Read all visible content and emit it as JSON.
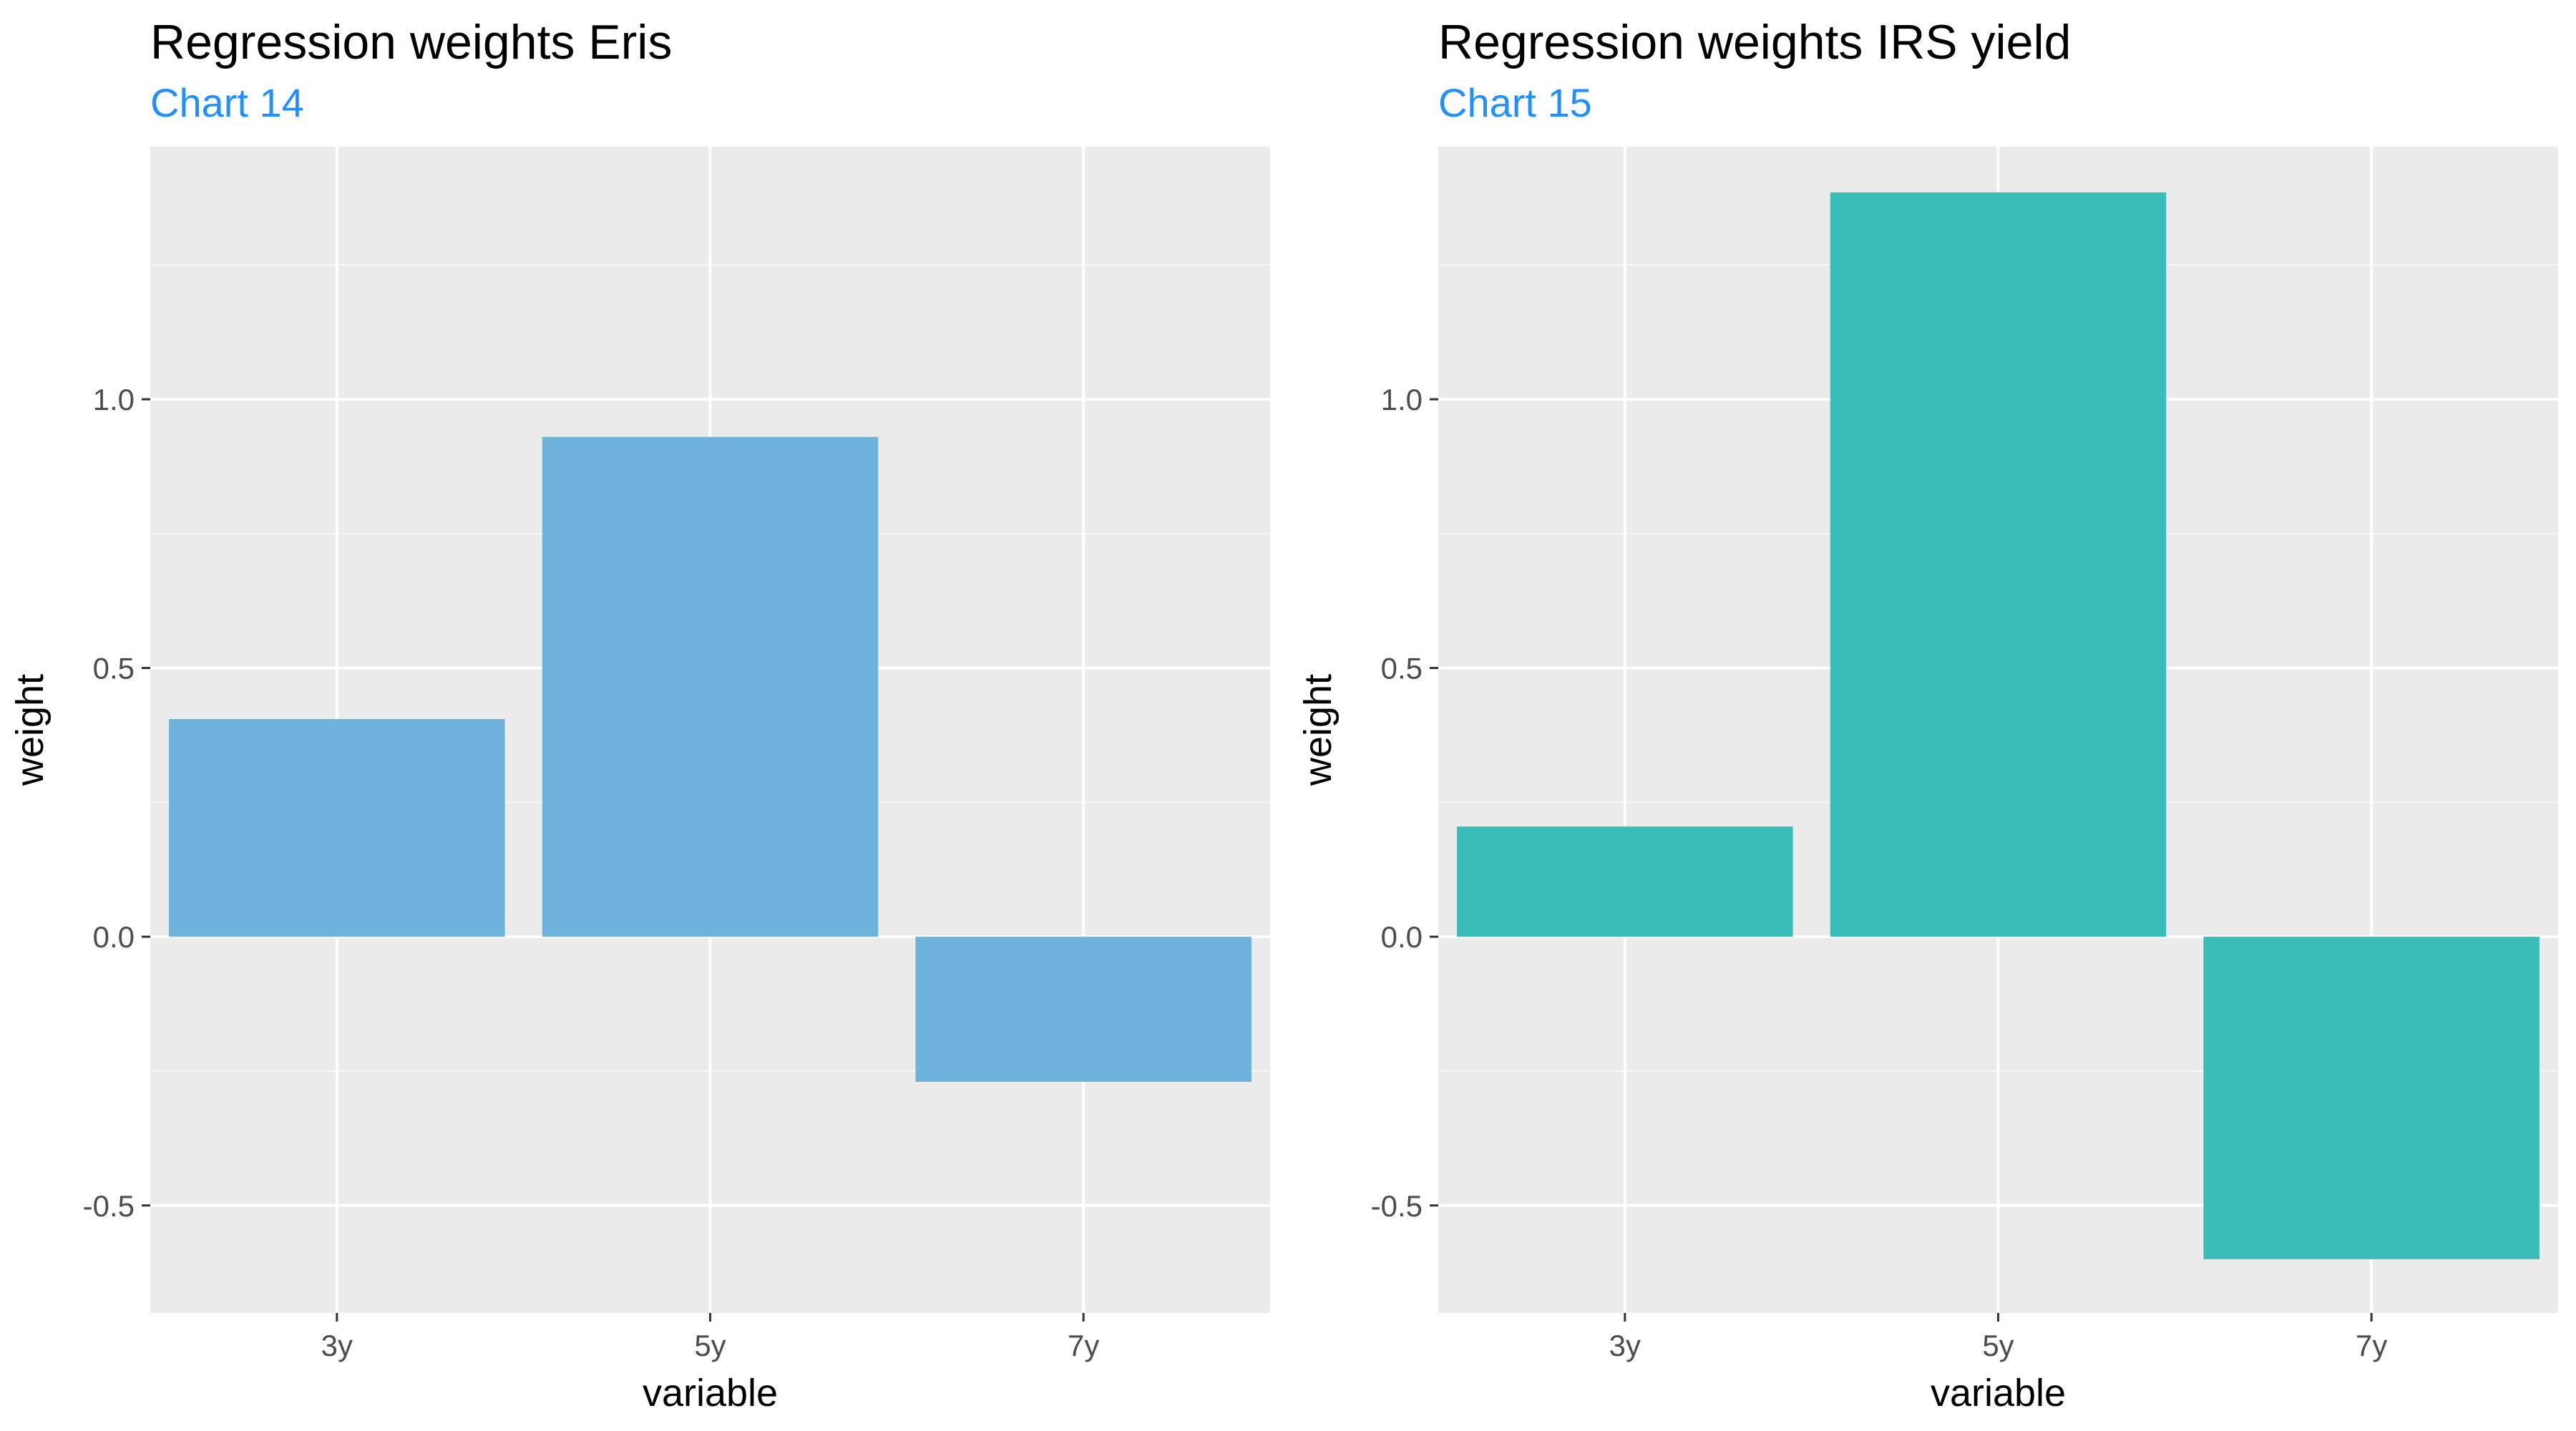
{
  "chart_data": [
    {
      "type": "bar",
      "title": "Regression weights Eris",
      "subtitle": "Chart 14",
      "xlabel": "variable",
      "ylabel": "weight",
      "categories": [
        "3y",
        "5y",
        "7y"
      ],
      "values": [
        0.405,
        0.93,
        -0.27
      ],
      "ylim": [
        -0.7,
        1.47
      ],
      "yticks": [
        -0.5,
        0.0,
        0.5,
        1.0
      ],
      "ytick_labels": [
        "-0.5",
        "0.0",
        "0.5",
        "1.0"
      ],
      "bar_color": "#6db3db",
      "panel_background": "#ebebeb",
      "grid": true,
      "legend": "none"
    },
    {
      "type": "bar",
      "title": "Regression weights IRS yield",
      "subtitle": "Chart 15",
      "xlabel": "variable",
      "ylabel": "weight",
      "categories": [
        "3y",
        "5y",
        "7y"
      ],
      "values": [
        0.205,
        1.385,
        -0.6
      ],
      "ylim": [
        -0.7,
        1.47
      ],
      "yticks": [
        -0.5,
        0.0,
        0.5,
        1.0
      ],
      "ytick_labels": [
        "-0.5",
        "0.0",
        "0.5",
        "1.0"
      ],
      "bar_color": "#3abdb9",
      "panel_background": "#ebebeb",
      "grid": true,
      "legend": "none"
    }
  ],
  "colors": {
    "subtitle": "#1e90ff",
    "grid": "#ffffff",
    "tick_text": "#4d4d4d",
    "tick_mark": "#333333"
  }
}
